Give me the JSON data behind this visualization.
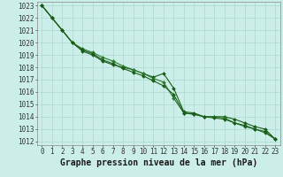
{
  "title": "Graphe pression niveau de la mer (hPa)",
  "bg_color": "#cceee8",
  "grid_color": "#aad8d0",
  "line_color1": "#1a5c1a",
  "line_color2": "#2d7a2d",
  "line_color3": "#1a5c1a",
  "xlim_min": -0.5,
  "xlim_max": 23.5,
  "ylim_min": 1012,
  "ylim_max": 1023,
  "tick_label_fontsize": 5.5,
  "xlabel_fontsize": 7,
  "series1": [
    1023.0,
    1022.0,
    1021.0,
    1020.0,
    1019.3,
    1019.0,
    1018.5,
    1018.2,
    1018.0,
    1017.8,
    1017.5,
    1017.2,
    1017.5,
    1016.3,
    1014.4,
    1014.3,
    1014.0,
    1014.0,
    1014.0,
    1013.8,
    1013.5,
    1013.2,
    1013.0,
    1012.2
  ],
  "series2": [
    1023.0,
    1022.0,
    1021.0,
    1020.0,
    1019.5,
    1019.2,
    1018.8,
    1018.5,
    1018.1,
    1017.8,
    1017.5,
    1017.1,
    1016.8,
    1015.5,
    1014.3,
    1014.2,
    1014.0,
    1014.0,
    1013.9,
    1013.5,
    1013.2,
    1013.0,
    1012.7,
    1012.2
  ],
  "series3": [
    1023.0,
    1022.0,
    1021.0,
    1020.0,
    1019.4,
    1019.1,
    1018.6,
    1018.3,
    1017.9,
    1017.6,
    1017.3,
    1016.9,
    1016.5,
    1015.8,
    1014.3,
    1014.2,
    1014.0,
    1013.9,
    1013.8,
    1013.5,
    1013.3,
    1013.0,
    1012.8,
    1012.2
  ],
  "linewidth": 0.8,
  "markersize": 2.0
}
